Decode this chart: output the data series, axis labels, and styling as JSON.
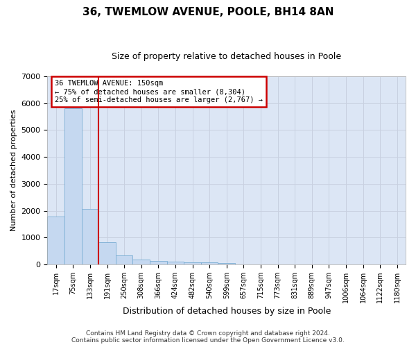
{
  "title": "36, TWEMLOW AVENUE, POOLE, BH14 8AN",
  "subtitle": "Size of property relative to detached houses in Poole",
  "xlabel": "Distribution of detached houses by size in Poole",
  "ylabel": "Number of detached properties",
  "bar_labels": [
    "17sqm",
    "75sqm",
    "133sqm",
    "191sqm",
    "250sqm",
    "308sqm",
    "366sqm",
    "424sqm",
    "482sqm",
    "540sqm",
    "599sqm",
    "657sqm",
    "715sqm",
    "773sqm",
    "831sqm",
    "889sqm",
    "947sqm",
    "1006sqm",
    "1064sqm",
    "1122sqm",
    "1180sqm"
  ],
  "bar_values": [
    1780,
    5800,
    2060,
    820,
    340,
    195,
    130,
    110,
    95,
    80,
    55,
    0,
    0,
    0,
    0,
    0,
    0,
    0,
    0,
    0,
    0
  ],
  "bar_color": "#c5d8f0",
  "bar_edgecolor": "#7aadd4",
  "grid_color": "#c8d0e0",
  "background_color": "#dce6f5",
  "red_line_x": 2.5,
  "annotation_text_line1": "36 TWEMLOW AVENUE: 150sqm",
  "annotation_text_line2": "← 75% of detached houses are smaller (8,304)",
  "annotation_text_line3": "25% of semi-detached houses are larger (2,767) →",
  "annotation_box_color": "#ffffff",
  "annotation_border_color": "#cc0000",
  "ylim": [
    0,
    7000
  ],
  "yticks": [
    0,
    1000,
    2000,
    3000,
    4000,
    5000,
    6000,
    7000
  ],
  "footer_line1": "Contains HM Land Registry data © Crown copyright and database right 2024.",
  "footer_line2": "Contains public sector information licensed under the Open Government Licence v3.0."
}
